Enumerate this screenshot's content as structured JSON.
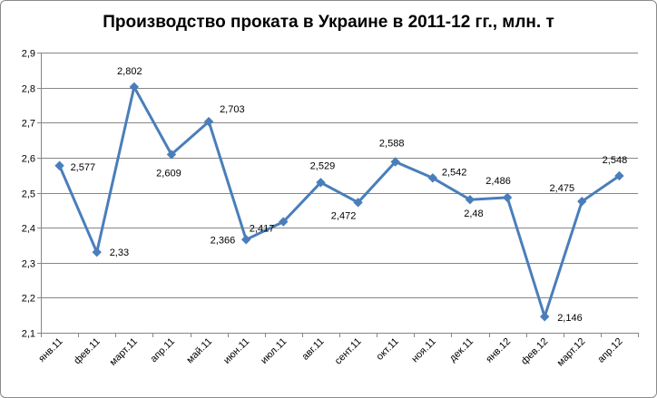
{
  "chart_data": {
    "type": "line",
    "title": "Производство проката в Украине в 2011-12 гг., млн. т",
    "xlabel": "",
    "ylabel": "",
    "categories": [
      "янв.11",
      "фев.11",
      "март.11",
      "апр.11",
      "май.11",
      "июн.11",
      "июл.11",
      "авг.11",
      "сент.11",
      "окт.11",
      "ноя.11",
      "дек.11",
      "янв.12",
      "фев.12",
      "март.12",
      "апр.12"
    ],
    "data_labels": [
      "2,577",
      "2,33",
      "2,802",
      "2,609",
      "2,703",
      "2,366",
      "2,417",
      "2,529",
      "2,472",
      "2,588",
      "2,542",
      "2,48",
      "2,486",
      "2,146",
      "2,475",
      "2,548"
    ],
    "series": [
      {
        "values": [
          2.577,
          2.33,
          2.802,
          2.609,
          2.703,
          2.366,
          2.417,
          2.529,
          2.472,
          2.588,
          2.542,
          2.48,
          2.486,
          2.146,
          2.475,
          2.548
        ]
      }
    ],
    "ylim": [
      2.1,
      2.9
    ],
    "yticks": [
      "2,1",
      "2,2",
      "2,3",
      "2,4",
      "2,5",
      "2,6",
      "2,7",
      "2,8",
      "2,9"
    ],
    "grid": true,
    "legend": "none",
    "colors": {
      "line": "#4a7ebb",
      "grid": "#868686",
      "axis": "#868686"
    }
  }
}
